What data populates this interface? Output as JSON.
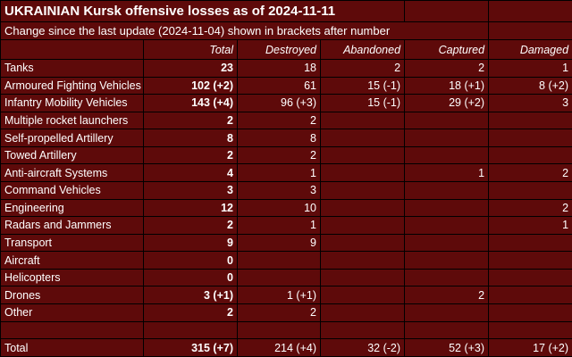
{
  "table": {
    "title": "UKRAINIAN Kursk offensive losses as of 2024-11-11",
    "subtitle": "Change since the last update (2024-11-04) shown in brackets after number",
    "header": [
      null,
      "Total",
      "Destroyed",
      "Abandoned",
      "Captured",
      "Damaged"
    ],
    "rows": [
      [
        "Tanks",
        "23",
        "18",
        "2",
        "2",
        "1"
      ],
      [
        "Armoured Fighting Vehicles",
        "102 (+2)",
        "61",
        "15 (-1)",
        "18 (+1)",
        "8 (+2)"
      ],
      [
        "Infantry Mobility Vehicles",
        "143 (+4)",
        "96 (+3)",
        "15 (-1)",
        "29 (+2)",
        "3"
      ],
      [
        "Multiple rocket launchers",
        "2",
        "2",
        null,
        null,
        null
      ],
      [
        "Self-propelled Artillery",
        "8",
        "8",
        null,
        null,
        null
      ],
      [
        "Towed Artillery",
        "2",
        "2",
        null,
        null,
        null
      ],
      [
        "Anti-aircraft Systems",
        "4",
        "1",
        null,
        "1",
        "2"
      ],
      [
        "Command Vehicles",
        "3",
        "3",
        null,
        null,
        null
      ],
      [
        "Engineering",
        "12",
        "10",
        null,
        null,
        "2"
      ],
      [
        "Radars and Jammers",
        "2",
        "1",
        null,
        null,
        "1"
      ],
      [
        "Transport",
        "9",
        "9",
        null,
        null,
        null
      ],
      [
        "Aircraft",
        "0",
        null,
        null,
        null,
        null
      ],
      [
        "Helicopters",
        "0",
        null,
        null,
        null,
        null
      ],
      [
        "Drones",
        "3 (+1)",
        "1 (+1)",
        null,
        "2",
        null
      ],
      [
        "Other",
        "2",
        "2",
        null,
        null,
        null
      ],
      [
        null,
        null,
        null,
        null,
        null,
        null
      ],
      [
        "Total",
        "315 (+7)",
        "214 (+4)",
        "32 (-2)",
        "52 (+3)",
        "17 (+2)"
      ]
    ]
  }
}
